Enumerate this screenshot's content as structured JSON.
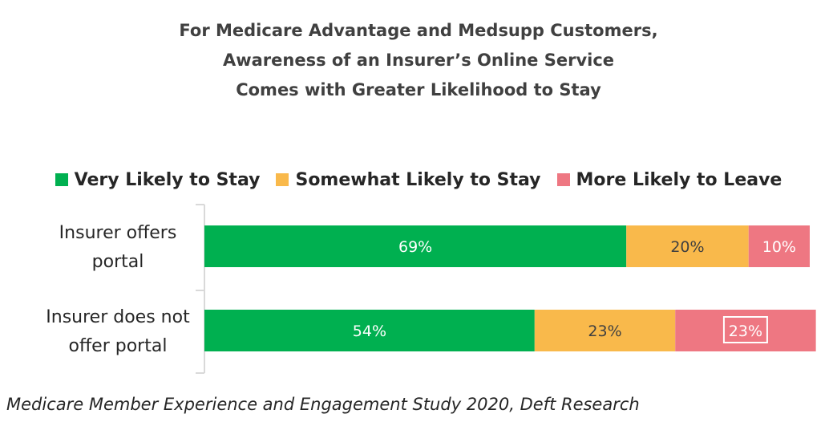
{
  "chart_data": {
    "type": "bar",
    "orientation": "horizontal",
    "stacked": true,
    "title_lines": [
      "For Medicare Advantage and Medsupp Customers,",
      "Awareness of an Insurer’s Online Service",
      "Comes with Greater Likelihood to Stay"
    ],
    "categories": [
      [
        "Insurer offers",
        "portal"
      ],
      [
        "Insurer does not",
        "offer portal"
      ]
    ],
    "series": [
      {
        "name": "Very Likely to Stay",
        "values": [
          69,
          54
        ],
        "labels": [
          "69%",
          "54%"
        ],
        "color": "#00B050",
        "label_color": "#ffffff"
      },
      {
        "name": "Somewhat Likely to Stay",
        "values": [
          20,
          23
        ],
        "labels": [
          "20%",
          "23%"
        ],
        "color": "#F9B94B",
        "label_color": "#404040"
      },
      {
        "name": "More Likely to Leave",
        "values": [
          10,
          23
        ],
        "labels": [
          "10%",
          "23%"
        ],
        "color": "#EE7782",
        "label_color": "#ffffff"
      }
    ],
    "boxed_labels": [
      {
        "series": 2,
        "category": 1
      }
    ],
    "xlim": [
      0,
      99
    ],
    "legend_position": "top",
    "grid": false,
    "axis_color": "#D9D9D9"
  },
  "footnote": "Medicare Member Experience and Engagement Study 2020, Deft Research"
}
